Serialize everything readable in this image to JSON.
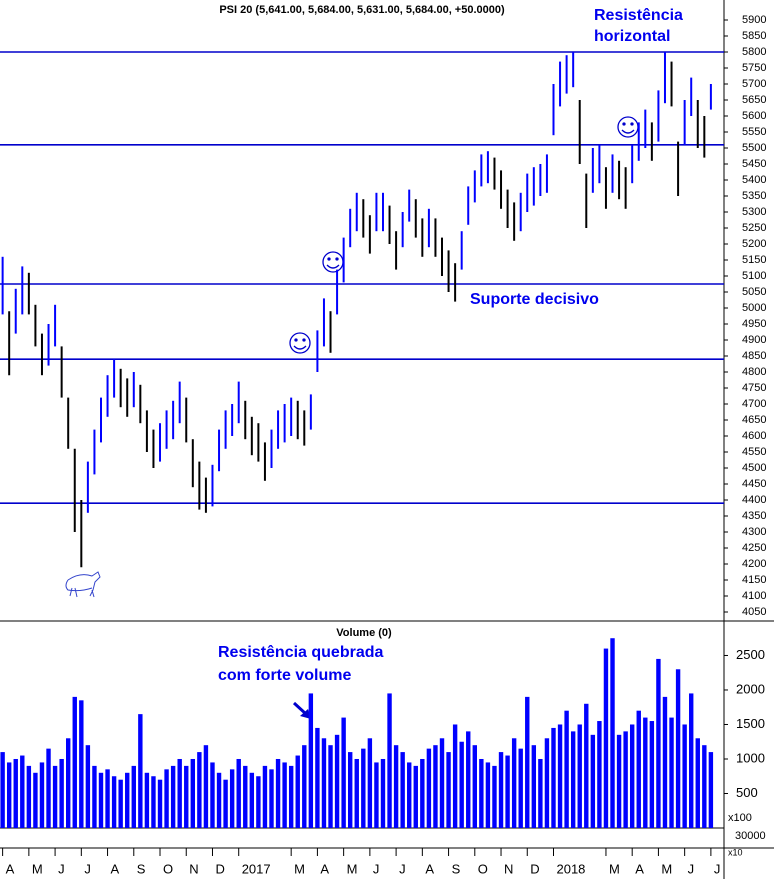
{
  "chart_data": [
    {
      "type": "hilo",
      "title": "PSI 20 (5,641.00, 5,684.00, 5,631.00, 5,684.00, +50.0000)",
      "color": "#0000ff",
      "down_color": "#000000",
      "hline_color": "#0000cc",
      "xlim": [
        -0.1,
        27.5
      ],
      "ylim": [
        4025,
        5962.5
      ],
      "yticks": [
        4050,
        4100,
        4150,
        4200,
        4250,
        4300,
        4350,
        4400,
        4450,
        4500,
        4550,
        4600,
        4650,
        4700,
        4750,
        4800,
        4850,
        4900,
        4950,
        5000,
        5050,
        5100,
        5150,
        5200,
        5250,
        5300,
        5350,
        5400,
        5450,
        5500,
        5550,
        5600,
        5650,
        5700,
        5750,
        5800,
        5850,
        5900
      ],
      "hlines": [
        5800,
        5510,
        5075,
        4840,
        4390
      ],
      "annotations": [
        [
          "Resistência",
          "horizontal"
        ],
        [
          "Suporte decisivo"
        ]
      ],
      "x": [
        0,
        0.25,
        0.5,
        0.75,
        1,
        1.25,
        1.5,
        1.75,
        2,
        2.25,
        2.5,
        2.75,
        3,
        3.25,
        3.5,
        3.75,
        4,
        4.25,
        4.5,
        4.75,
        5,
        5.25,
        5.5,
        5.75,
        6,
        6.25,
        6.5,
        6.75,
        7,
        7.25,
        7.5,
        7.75,
        8,
        8.25,
        8.5,
        8.75,
        9,
        9.25,
        9.5,
        9.75,
        10,
        10.25,
        10.5,
        10.75,
        11,
        11.25,
        11.5,
        11.75,
        12,
        12.25,
        12.5,
        12.75,
        13,
        13.25,
        13.5,
        13.75,
        14,
        14.25,
        14.5,
        14.75,
        15,
        15.25,
        15.5,
        15.75,
        16,
        16.25,
        16.5,
        16.75,
        17,
        17.25,
        17.5,
        17.75,
        18,
        18.25,
        18.5,
        18.75,
        19,
        19.25,
        19.5,
        19.75,
        20,
        20.25,
        20.5,
        20.75,
        21,
        21.25,
        21.5,
        21.75,
        22,
        22.25,
        22.5,
        22.75,
        23,
        23.25,
        23.5,
        23.75,
        24,
        24.25,
        24.5,
        24.75,
        25,
        25.25,
        25.5,
        25.75,
        26,
        26.25,
        26.5,
        26.75,
        27
      ],
      "high": [
        5160,
        4990,
        5060,
        5130,
        5110,
        5010,
        4920,
        4950,
        5010,
        4880,
        4720,
        4560,
        4400,
        4520,
        4620,
        4720,
        4790,
        4840,
        4810,
        4780,
        4800,
        4760,
        4680,
        4620,
        4640,
        4680,
        4710,
        4770,
        4720,
        4590,
        4520,
        4470,
        4510,
        4620,
        4680,
        4700,
        4770,
        4710,
        4660,
        4640,
        4580,
        4620,
        4680,
        4700,
        4720,
        4710,
        4680,
        4730,
        4930,
        5030,
        4990,
        5120,
        5220,
        5310,
        5360,
        5340,
        5290,
        5360,
        5360,
        5320,
        5240,
        5300,
        5370,
        5340,
        5280,
        5310,
        5280,
        5220,
        5180,
        5140,
        5240,
        5380,
        5430,
        5480,
        5490,
        5470,
        5430,
        5370,
        5330,
        5360,
        5420,
        5440,
        5450,
        5480,
        5700,
        5770,
        5790,
        5800,
        5650,
        5420,
        5500,
        5510,
        5440,
        5480,
        5460,
        5440,
        5510,
        5580,
        5620,
        5580,
        5680,
        5800,
        5770,
        5520,
        5650,
        5720,
        5650,
        5600,
        5700
      ],
      "low": [
        4980,
        4790,
        4920,
        4980,
        4980,
        4880,
        4790,
        4820,
        4880,
        4720,
        4560,
        4300,
        4190,
        4360,
        4480,
        4580,
        4660,
        4720,
        4690,
        4660,
        4690,
        4640,
        4550,
        4500,
        4520,
        4560,
        4590,
        4640,
        4580,
        4440,
        4370,
        4360,
        4380,
        4490,
        4560,
        4600,
        4640,
        4590,
        4540,
        4520,
        4460,
        4500,
        4560,
        4580,
        4600,
        4590,
        4570,
        4620,
        4800,
        4880,
        4860,
        4980,
        5080,
        5190,
        5240,
        5220,
        5170,
        5240,
        5240,
        5200,
        5120,
        5190,
        5270,
        5220,
        5160,
        5190,
        5160,
        5100,
        5050,
        5020,
        5120,
        5260,
        5330,
        5380,
        5390,
        5370,
        5310,
        5250,
        5210,
        5240,
        5300,
        5320,
        5350,
        5360,
        5540,
        5630,
        5670,
        5690,
        5450,
        5250,
        5360,
        5390,
        5310,
        5360,
        5340,
        5310,
        5390,
        5460,
        5500,
        5460,
        5520,
        5640,
        5630,
        5350,
        5510,
        5600,
        5500,
        5470,
        5620
      ]
    },
    {
      "type": "bar",
      "title": "Volume (0)",
      "color": "#0000ff",
      "annotations": [
        [
          "Resistência quebrada",
          "com forte volume"
        ]
      ],
      "unit_labels": [
        "x100",
        "30000",
        "x10"
      ],
      "xlim": [
        -0.1,
        27.5
      ],
      "ylim": [
        0,
        2985
      ],
      "yticks": [
        500,
        1000,
        1500,
        2000,
        2500
      ],
      "xticks": [
        {
          "value": 0,
          "label": "A"
        },
        {
          "value": 1,
          "label": "M"
        },
        {
          "value": 2,
          "label": "J"
        },
        {
          "value": 3,
          "label": "J"
        },
        {
          "value": 4,
          "label": "A"
        },
        {
          "value": 5,
          "label": "S"
        },
        {
          "value": 6,
          "label": "O"
        },
        {
          "value": 7,
          "label": "N"
        },
        {
          "value": 8,
          "label": "D"
        },
        {
          "value": 9,
          "label": "2017"
        },
        {
          "value": 11,
          "label": "M"
        },
        {
          "value": 12,
          "label": "A"
        },
        {
          "value": 13,
          "label": "M"
        },
        {
          "value": 14,
          "label": "J"
        },
        {
          "value": 15,
          "label": "J"
        },
        {
          "value": 16,
          "label": "A"
        },
        {
          "value": 17,
          "label": "S"
        },
        {
          "value": 18,
          "label": "O"
        },
        {
          "value": 19,
          "label": "N"
        },
        {
          "value": 20,
          "label": "D"
        },
        {
          "value": 21,
          "label": "2018"
        },
        {
          "value": 23,
          "label": "M"
        },
        {
          "value": 24,
          "label": "A"
        },
        {
          "value": 25,
          "label": "M"
        },
        {
          "value": 26,
          "label": "J"
        },
        {
          "value": 27,
          "label": "J"
        }
      ],
      "x": [
        0,
        0.25,
        0.5,
        0.75,
        1,
        1.25,
        1.5,
        1.75,
        2,
        2.25,
        2.5,
        2.75,
        3,
        3.25,
        3.5,
        3.75,
        4,
        4.25,
        4.5,
        4.75,
        5,
        5.25,
        5.5,
        5.75,
        6,
        6.25,
        6.5,
        6.75,
        7,
        7.25,
        7.5,
        7.75,
        8,
        8.25,
        8.5,
        8.75,
        9,
        9.25,
        9.5,
        9.75,
        10,
        10.25,
        10.5,
        10.75,
        11,
        11.25,
        11.5,
        11.75,
        12,
        12.25,
        12.5,
        12.75,
        13,
        13.25,
        13.5,
        13.75,
        14,
        14.25,
        14.5,
        14.75,
        15,
        15.25,
        15.5,
        15.75,
        16,
        16.25,
        16.5,
        16.75,
        17,
        17.25,
        17.5,
        17.75,
        18,
        18.25,
        18.5,
        18.75,
        19,
        19.25,
        19.5,
        19.75,
        20,
        20.25,
        20.5,
        20.75,
        21,
        21.25,
        21.5,
        21.75,
        22,
        22.25,
        22.5,
        22.75,
        23,
        23.25,
        23.5,
        23.75,
        24,
        24.25,
        24.5,
        24.75,
        25,
        25.25,
        25.5,
        25.75,
        26,
        26.25,
        26.5,
        26.75,
        27
      ],
      "values": [
        1100,
        950,
        1000,
        1050,
        900,
        800,
        950,
        1150,
        900,
        1000,
        1300,
        1900,
        1850,
        1200,
        900,
        800,
        850,
        750,
        700,
        800,
        900,
        1650,
        800,
        750,
        700,
        850,
        900,
        1000,
        900,
        1000,
        1100,
        1200,
        950,
        800,
        700,
        850,
        1000,
        900,
        800,
        750,
        900,
        850,
        1000,
        950,
        900,
        1050,
        1200,
        1950,
        1450,
        1300,
        1200,
        1350,
        1600,
        1100,
        1000,
        1150,
        1300,
        950,
        1000,
        1950,
        1200,
        1100,
        950,
        900,
        1000,
        1150,
        1200,
        1300,
        1100,
        1500,
        1250,
        1400,
        1200,
        1000,
        950,
        900,
        1100,
        1050,
        1300,
        1150,
        1900,
        1200,
        1000,
        1300,
        1450,
        1500,
        1700,
        1400,
        1500,
        1800,
        1350,
        1550,
        2600,
        2750,
        1350,
        1400,
        1500,
        1700,
        1600,
        1550,
        2450,
        1900,
        1600,
        2300,
        1500,
        1950,
        1300,
        1200,
        1100
      ]
    }
  ]
}
